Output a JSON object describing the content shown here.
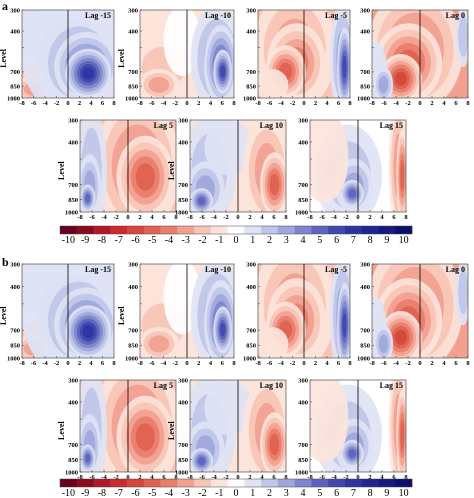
{
  "figure": {
    "sections": [
      {
        "label": "a",
        "panels": [
          {
            "lag": "Lag -15",
            "pattern": "pos-east-strong",
            "show_ylabel": true
          },
          {
            "lag": "Lag -10",
            "pattern": "mixed-east-red",
            "show_ylabel": true
          },
          {
            "lag": "Lag -5",
            "pattern": "neg-center-red-east",
            "show_ylabel": false
          },
          {
            "lag": "Lag 0",
            "pattern": "neg-strong",
            "show_ylabel": false
          },
          {
            "lag": "Lag 5",
            "pattern": "neg-right-red-west",
            "show_ylabel": true
          },
          {
            "lag": "Lag 10",
            "pattern": "red-west-blue-east",
            "show_ylabel": true
          },
          {
            "lag": "Lag 15",
            "pattern": "red-center-weak",
            "show_ylabel": false
          }
        ]
      },
      {
        "label": "b",
        "panels": [
          {
            "lag": "Lag -15",
            "pattern": "pos-east-strong",
            "show_ylabel": true
          },
          {
            "lag": "Lag -10",
            "pattern": "mixed-east-red",
            "show_ylabel": true
          },
          {
            "lag": "Lag -5",
            "pattern": "neg-center-red-east",
            "show_ylabel": false
          },
          {
            "lag": "Lag 0",
            "pattern": "neg-strong",
            "show_ylabel": false
          },
          {
            "lag": "Lag 5",
            "pattern": "neg-right-red-west",
            "show_ylabel": true
          },
          {
            "lag": "Lag 10",
            "pattern": "red-west-blue-east",
            "show_ylabel": true
          },
          {
            "lag": "Lag 15",
            "pattern": "red-center-weak",
            "show_ylabel": false
          }
        ]
      }
    ]
  },
  "chart_data": {
    "type": "heatmap",
    "ylabel": "Level",
    "x_ticks": [
      "-8",
      "-6",
      "-4",
      "-2",
      "0",
      "2",
      "4",
      "6",
      "8"
    ],
    "y_ticks": [
      "300",
      "400",
      "500",
      "700",
      "850",
      "1000"
    ],
    "xlim": [
      -8,
      8
    ],
    "ylim": [
      1000,
      300
    ],
    "y_scale": "log",
    "reference_line_x": 0,
    "colorbar": {
      "ticks": [
        "-10",
        "-9",
        "-8",
        "-7",
        "-6",
        "-5",
        "-4",
        "-3",
        "-2",
        "-1",
        "0",
        "1",
        "2",
        "3",
        "4",
        "5",
        "6",
        "7",
        "8",
        "9",
        "10"
      ],
      "colors": [
        "#67001f",
        "#8b0a1e",
        "#b2182b",
        "#cc2a2e",
        "#d6473b",
        "#e0614f",
        "#ea7d6b",
        "#f2a08f",
        "#f8c4b5",
        "#fce4db",
        "#ffffff",
        "#dfe3f4",
        "#bfc6e8",
        "#9ea6db",
        "#7d85cc",
        "#5d64bd",
        "#4048ad",
        "#2d34a0",
        "#1f2692",
        "#141a80",
        "#0b0f6b"
      ]
    }
  }
}
